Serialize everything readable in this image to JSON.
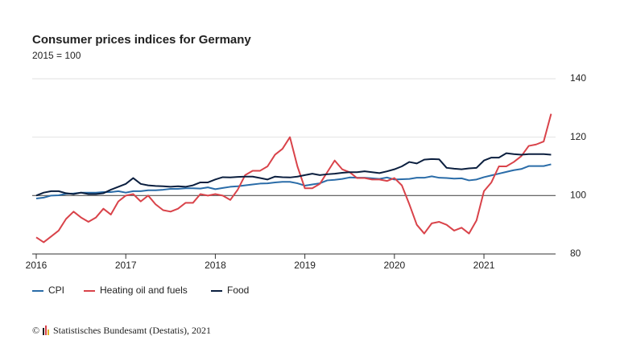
{
  "chart_data": {
    "type": "line",
    "title": "Consumer prices indices for Germany",
    "subtitle": "2015 = 100",
    "copyright": "©",
    "source": "Statistisches Bundesamt (Destatis), 2021",
    "x": [
      2016,
      2016.083,
      2016.167,
      2016.25,
      2016.333,
      2016.417,
      2016.5,
      2016.583,
      2016.667,
      2016.75,
      2016.833,
      2016.917,
      2017,
      2017.083,
      2017.167,
      2017.25,
      2017.333,
      2017.417,
      2017.5,
      2017.583,
      2017.667,
      2017.75,
      2017.833,
      2017.917,
      2018,
      2018.083,
      2018.167,
      2018.25,
      2018.333,
      2018.417,
      2018.5,
      2018.583,
      2018.667,
      2018.75,
      2018.833,
      2018.917,
      2019,
      2019.083,
      2019.167,
      2019.25,
      2019.333,
      2019.417,
      2019.5,
      2019.583,
      2019.667,
      2019.75,
      2019.833,
      2019.917,
      2020,
      2020.083,
      2020.167,
      2020.25,
      2020.333,
      2020.417,
      2020.5,
      2020.583,
      2020.667,
      2020.75,
      2020.833,
      2020.917,
      2021,
      2021.083,
      2021.167,
      2021.25,
      2021.333,
      2021.417,
      2021.5,
      2021.583,
      2021.667,
      2021.75
    ],
    "series": [
      {
        "name": "CPI",
        "color": "#2a6ca8",
        "values": [
          99,
          99.3,
          100,
          100.1,
          100.6,
          100.7,
          101,
          101,
          101,
          101.2,
          101.2,
          101.5,
          101,
          101.5,
          101.5,
          101.8,
          101.8,
          102,
          102.3,
          102.3,
          102.5,
          102.5,
          102.4,
          102.8,
          102.2,
          102.6,
          103,
          103.2,
          103.5,
          103.8,
          104.1,
          104.2,
          104.5,
          104.7,
          104.7,
          104.2,
          103.4,
          103.8,
          104.2,
          105.2,
          105.4,
          105.7,
          106.2,
          106.1,
          106.1,
          105.9,
          105.7,
          106.2,
          105.5,
          105.6,
          105.7,
          106.1,
          106.1,
          106.6,
          106.1,
          106,
          105.8,
          105.9,
          105.2,
          105.5,
          106.3,
          106.9,
          107.5,
          108.1,
          108.7,
          109.1,
          110.1,
          110.1,
          110.1,
          110.7
        ]
      },
      {
        "name": "Heating oil and fuels",
        "color": "#d9434a",
        "values": [
          85.7,
          84,
          86,
          88,
          92,
          94.5,
          92.5,
          91,
          92.5,
          95.5,
          93.5,
          98,
          100,
          100.5,
          98,
          100,
          97,
          95,
          94.5,
          95.5,
          97.5,
          97.5,
          100.5,
          100,
          100.5,
          100,
          98.5,
          102,
          107,
          108.5,
          108.5,
          110,
          114,
          116,
          120,
          110,
          102.5,
          102.5,
          104,
          108,
          112,
          109,
          108,
          106,
          106,
          105.5,
          105.5,
          105,
          106,
          103.5,
          97,
          90,
          87,
          90.5,
          91,
          90,
          88,
          89,
          87,
          91.5,
          101.5,
          104.5,
          110,
          110,
          111.5,
          113.5,
          117,
          117.5,
          118.5,
          128
        ]
      },
      {
        "name": "Food",
        "color": "#0b1f3f",
        "values": [
          100,
          101,
          101.5,
          101.5,
          100.8,
          100.5,
          101,
          100.5,
          100.5,
          100.8,
          102,
          103,
          104,
          106,
          104,
          103.5,
          103.3,
          103.2,
          103,
          103.2,
          103,
          103.5,
          104.5,
          104.5,
          105.5,
          106.3,
          106.2,
          106.4,
          106.5,
          106.5,
          106,
          105.5,
          106.5,
          106.3,
          106.2,
          106.5,
          107,
          107.5,
          107,
          107.3,
          107.5,
          107.8,
          108,
          108,
          108.3,
          108,
          107.7,
          108.3,
          109,
          110,
          111.5,
          111,
          112.3,
          112.5,
          112.4,
          109.5,
          109.2,
          109,
          109.3,
          109.5,
          112,
          113,
          113,
          114.5,
          114.2,
          114,
          114.2,
          114.2,
          114.2,
          114
        ]
      }
    ],
    "xlim": [
      2015.955,
      2021.8
    ],
    "xticks": [
      2016,
      2017,
      2018,
      2019,
      2020,
      2021
    ],
    "ylim": [
      80,
      140
    ],
    "yticks": [
      80,
      100,
      120,
      140
    ],
    "hline": 100,
    "grid": true
  }
}
